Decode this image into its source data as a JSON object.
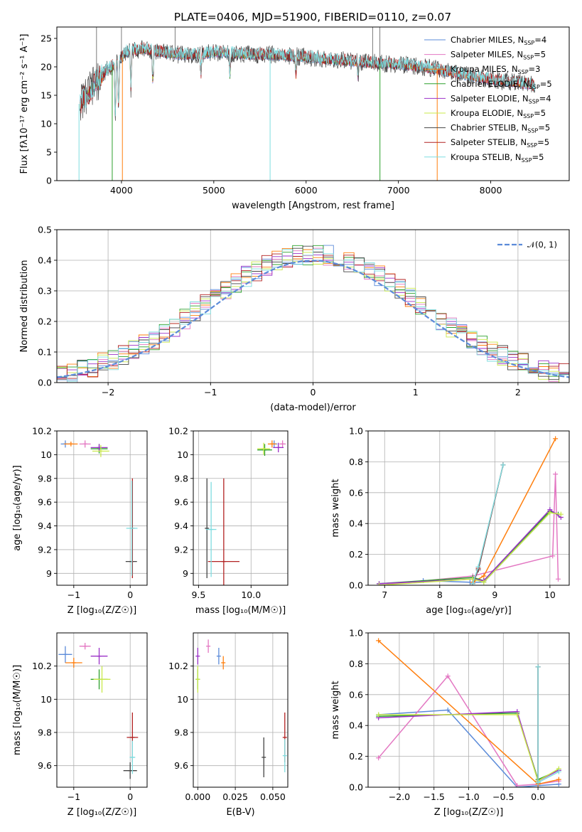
{
  "figure": {
    "title": "PLATE=0406, MJD=51900, FIBERID=0110, z=0.07"
  },
  "colors": {
    "Chabrier MILES": "#5b8bd9",
    "Salpeter MILES": "#e377c2",
    "Kroupa MILES": "#ff7f0e",
    "Chabrier ELODIE": "#2ca02c",
    "Salpeter ELODIE": "#9b30c8",
    "Kroupa ELODIE": "#c8e84a",
    "Chabrier STELIB": "#444444",
    "Salpeter STELIB": "#b22222",
    "Kroupa STELIB": "#7fdde0",
    "normal": "#5b8bd9"
  },
  "chart_data": [
    {
      "id": "spectrum",
      "type": "line",
      "xlabel": "wavelength [Angstrom, rest frame]",
      "ylabel": "Flux [fλ10⁻¹⁷ erg cm⁻² s⁻¹ A⁻¹]",
      "xlim": [
        3300,
        8850
      ],
      "ylim": [
        0,
        27
      ],
      "xticks": [
        4000,
        5000,
        6000,
        7000,
        8000
      ],
      "yticks": [
        0,
        5,
        10,
        15,
        20,
        25
      ],
      "grid": false,
      "legend_position": "top-right",
      "legend": [
        {
          "label": "Chabrier MILES, N",
          "sub": "SSP",
          "tail": "=4"
        },
        {
          "label": "Salpeter MILES, N",
          "sub": "SSP",
          "tail": "=5"
        },
        {
          "label": "Kroupa MILES, N",
          "sub": "SSP",
          "tail": "=3"
        },
        {
          "label": "Chabrier ELODIE, N",
          "sub": "SSP",
          "tail": "=5"
        },
        {
          "label": "Salpeter ELODIE, N",
          "sub": "SSP",
          "tail": "=4"
        },
        {
          "label": "Kroupa ELODIE, N",
          "sub": "SSP",
          "tail": "=5"
        },
        {
          "label": "Chabrier STELIB, N",
          "sub": "SSP",
          "tail": "=5"
        },
        {
          "label": "Salpeter STELIB, N",
          "sub": "SSP",
          "tail": "=5"
        },
        {
          "label": "Kroupa STELIB, N",
          "sub": "SSP",
          "tail": "=5"
        }
      ],
      "continuum": {
        "x": [
          3550,
          3650,
          3750,
          3850,
          3950,
          4050,
          4150,
          4250,
          4400,
          4600,
          4800,
          5000,
          5200,
          5400,
          5600,
          5800,
          6000,
          6200,
          6400,
          6600,
          6800,
          7000,
          7200,
          7400,
          7600,
          7800,
          8000,
          8200,
          8400,
          8500
        ],
        "y": [
          13.5,
          15.5,
          17.5,
          19.5,
          20.5,
          22.5,
          22.8,
          23.0,
          22.5,
          22.0,
          22.0,
          22.4,
          22.2,
          22.0,
          22.0,
          21.8,
          21.6,
          21.2,
          21.0,
          20.7,
          20.5,
          20.3,
          20.0,
          19.5,
          18.8,
          18.2,
          17.6,
          17.2,
          16.8,
          16.5
        ]
      },
      "absorption_lines": [
        {
          "x": 3933,
          "y": 11.0
        },
        {
          "x": 3968,
          "y": 12.0
        },
        {
          "x": 4102,
          "y": 16.0
        },
        {
          "x": 4340,
          "y": 16.5
        },
        {
          "x": 4861,
          "y": 18.5
        },
        {
          "x": 5175,
          "y": 18.0
        },
        {
          "x": 5890,
          "y": 18.5
        },
        {
          "x": 6563,
          "y": 18.0
        }
      ],
      "spikes_down": [
        {
          "x": 3900,
          "y": 0,
          "series": "Chabrier ELODIE"
        },
        {
          "x": 4010,
          "y": 0,
          "series": "Kroupa MILES"
        },
        {
          "x": 5610,
          "y": 0,
          "series": "Kroupa STELIB"
        },
        {
          "x": 6800,
          "y": 0,
          "series": "Chabrier ELODIE"
        },
        {
          "x": 7420,
          "y": 0,
          "series": "Kroupa MILES"
        },
        {
          "x": 3540,
          "y": 0,
          "series": "Kroupa STELIB"
        }
      ]
    },
    {
      "id": "residuals",
      "type": "step",
      "xlabel": "(data-model)/error",
      "ylabel": "Normed distribution",
      "xlim": [
        -2.5,
        2.5
      ],
      "ylim": [
        0,
        0.5
      ],
      "xticks": [
        -2,
        -1,
        0,
        1,
        2
      ],
      "xticklabels": [
        "−2",
        "−1",
        "0",
        "1",
        "2"
      ],
      "yticks": [
        0.0,
        0.1,
        0.2,
        0.3,
        0.4,
        0.5
      ],
      "yticklabels": [
        "0.0",
        "0.1",
        "0.2",
        "0.3",
        "0.4",
        "0.5"
      ],
      "grid": true,
      "legend_position": "top-right",
      "legend": "𝒩(0, 1)",
      "bin_width": 0.1,
      "bin_start": -2.5
    },
    {
      "id": "age-vs-Z",
      "type": "scatter-errorbar",
      "xlabel": "Z [log₁₀(Z/Z☉)]",
      "ylabel": "age  [log₁₀(age/yr)]",
      "xlim": [
        -1.3,
        0.3
      ],
      "ylim": [
        8.9,
        10.2
      ],
      "xticks": [
        -1,
        0
      ],
      "xticklabels": [
        "−1",
        "0"
      ],
      "yticks": [
        9.0,
        9.2,
        9.4,
        9.6,
        9.8,
        10.0,
        10.2
      ],
      "grid": true,
      "points": [
        {
          "series": "Chabrier MILES",
          "x": -1.15,
          "y": 10.09,
          "xerr": 0.08,
          "yerr": 0.03
        },
        {
          "series": "Salpeter MILES",
          "x": -0.8,
          "y": 10.09,
          "xerr": 0.1,
          "yerr": 0.03
        },
        {
          "series": "Kroupa MILES",
          "x": -1.05,
          "y": 10.09,
          "xerr": 0.12,
          "yerr": 0.02
        },
        {
          "series": "Chabrier ELODIE",
          "x": -0.55,
          "y": 10.05,
          "xerr": 0.15,
          "yerr": 0.04
        },
        {
          "series": "Salpeter ELODIE",
          "x": -0.55,
          "y": 10.06,
          "xerr": 0.15,
          "yerr": 0.03
        },
        {
          "series": "Kroupa ELODIE",
          "x": -0.52,
          "y": 10.03,
          "xerr": 0.15,
          "yerr": 0.05
        },
        {
          "series": "Chabrier STELIB",
          "x": 0.02,
          "y": 9.1,
          "xerr": 0.1,
          "yerr": 0.0
        },
        {
          "series": "Salpeter STELIB",
          "x": 0.04,
          "y": 9.38,
          "xerr": 0.0,
          "yerr": 0.42
        },
        {
          "series": "Kroupa STELIB",
          "x": 0.03,
          "y": 9.38,
          "xerr": 0.1,
          "yerr": 0.4
        }
      ]
    },
    {
      "id": "age-vs-mass",
      "type": "scatter-errorbar",
      "xlabel": "mass [log₁₀(M/M☉)]",
      "ylabel": "",
      "xlim": [
        9.45,
        10.35
      ],
      "ylim": [
        8.9,
        10.2
      ],
      "xticks": [
        9.5,
        10.0
      ],
      "xticklabels": [
        "9.5",
        "10.0"
      ],
      "yticks": [
        9.0,
        9.2,
        9.4,
        9.6,
        9.8,
        10.0,
        10.2
      ],
      "grid": true,
      "points": [
        {
          "series": "Chabrier MILES",
          "x": 10.22,
          "y": 10.09,
          "xerr": 0.03,
          "yerr": 0.03
        },
        {
          "series": "Salpeter MILES",
          "x": 10.3,
          "y": 10.09,
          "xerr": 0.03,
          "yerr": 0.03
        },
        {
          "series": "Kroupa MILES",
          "x": 10.2,
          "y": 10.09,
          "xerr": 0.04,
          "yerr": 0.03
        },
        {
          "series": "Chabrier ELODIE",
          "x": 10.13,
          "y": 10.04,
          "xerr": 0.07,
          "yerr": 0.05
        },
        {
          "series": "Salpeter ELODIE",
          "x": 10.26,
          "y": 10.06,
          "xerr": 0.05,
          "yerr": 0.04
        },
        {
          "series": "Kroupa ELODIE",
          "x": 10.12,
          "y": 10.05,
          "xerr": 0.06,
          "yerr": 0.05
        },
        {
          "series": "Chabrier STELIB",
          "x": 9.58,
          "y": 9.38,
          "xerr": 0.0,
          "yerr": 0.42
        },
        {
          "series": "Salpeter STELIB",
          "x": 9.74,
          "y": 9.1,
          "xerr": 0.15,
          "yerr": 0.7
        },
        {
          "series": "Kroupa STELIB",
          "x": 9.62,
          "y": 9.37,
          "xerr": 0.05,
          "yerr": 0.4
        }
      ]
    },
    {
      "id": "weight-vs-age",
      "type": "line",
      "xlabel": "age  [log₁₀(age/yr)]",
      "ylabel": "mass weight",
      "xlim": [
        6.7,
        10.35
      ],
      "ylim": [
        0,
        1
      ],
      "xticks": [
        7,
        8,
        9,
        10
      ],
      "yticks": [
        0.0,
        0.2,
        0.4,
        0.6,
        0.8,
        1.0
      ],
      "yticklabels": [
        "0.0",
        "0.2",
        "0.4",
        "0.6",
        "0.8",
        "1.0"
      ],
      "grid": true,
      "series": [
        {
          "name": "Chabrier MILES",
          "x": [
            7.7,
            8.55,
            8.8,
            10.0
          ],
          "y": [
            0.03,
            0.02,
            0.02,
            0.47
          ]
        },
        {
          "name": "Salpeter MILES",
          "x": [
            6.9,
            8.6,
            10.05,
            10.1,
            10.15
          ],
          "y": [
            0.0,
            0.06,
            0.19,
            0.72,
            0.04
          ]
        },
        {
          "name": "Kroupa MILES",
          "x": [
            8.6,
            8.8,
            10.1
          ],
          "y": [
            0.02,
            0.06,
            0.95
          ]
        },
        {
          "name": "Chabrier ELODIE",
          "x": [
            6.9,
            8.6,
            8.8,
            10.0,
            10.15
          ],
          "y": [
            0.01,
            0.05,
            0.03,
            0.48,
            0.46
          ]
        },
        {
          "name": "Salpeter ELODIE",
          "x": [
            6.9,
            8.6,
            8.8,
            10.0,
            10.2
          ],
          "y": [
            0.01,
            0.04,
            0.03,
            0.49,
            0.44
          ]
        },
        {
          "name": "Kroupa ELODIE",
          "x": [
            6.9,
            8.6,
            8.8,
            10.0,
            10.2
          ],
          "y": [
            0.0,
            0.04,
            0.02,
            0.47,
            0.46
          ]
        },
        {
          "name": "Chabrier STELIB",
          "x": [
            8.6,
            8.7,
            9.15
          ],
          "y": [
            0.01,
            0.1,
            0.78
          ]
        },
        {
          "name": "Salpeter STELIB",
          "x": [
            8.6,
            8.7,
            9.15
          ],
          "y": [
            0.01,
            0.11,
            0.78
          ]
        },
        {
          "name": "Kroupa STELIB",
          "x": [
            8.6,
            8.7,
            9.15
          ],
          "y": [
            0.01,
            0.12,
            0.78
          ]
        }
      ]
    },
    {
      "id": "mass-vs-Z",
      "type": "scatter-errorbar",
      "xlabel": "Z [log₁₀(Z/Z☉)]",
      "ylabel": "mass [log₁₀(M/M☉)]",
      "xlim": [
        -1.3,
        0.3
      ],
      "ylim": [
        9.47,
        10.4
      ],
      "xticks": [
        -1,
        0
      ],
      "xticklabels": [
        "−1",
        "0"
      ],
      "yticks": [
        9.6,
        9.8,
        10.0,
        10.2
      ],
      "grid": true,
      "points": [
        {
          "series": "Chabrier MILES",
          "x": -1.15,
          "y": 10.27,
          "xerr": 0.12,
          "yerr": 0.05
        },
        {
          "series": "Salpeter MILES",
          "x": -0.8,
          "y": 10.32,
          "xerr": 0.1,
          "yerr": 0.02
        },
        {
          "series": "Kroupa MILES",
          "x": -1.0,
          "y": 10.22,
          "xerr": 0.15,
          "yerr": 0.03
        },
        {
          "series": "Chabrier ELODIE",
          "x": -0.55,
          "y": 10.12,
          "xerr": 0.15,
          "yerr": 0.06
        },
        {
          "series": "Salpeter ELODIE",
          "x": -0.55,
          "y": 10.26,
          "xerr": 0.15,
          "yerr": 0.05
        },
        {
          "series": "Kroupa ELODIE",
          "x": -0.5,
          "y": 10.12,
          "xerr": 0.15,
          "yerr": 0.08
        },
        {
          "series": "Chabrier STELIB",
          "x": 0.0,
          "y": 9.57,
          "xerr": 0.12,
          "yerr": 0.05
        },
        {
          "series": "Salpeter STELIB",
          "x": 0.04,
          "y": 9.77,
          "xerr": 0.1,
          "yerr": 0.15
        },
        {
          "series": "Kroupa STELIB",
          "x": 0.04,
          "y": 9.65,
          "xerr": 0.05,
          "yerr": 0.1
        }
      ]
    },
    {
      "id": "mass-vs-EBV",
      "type": "scatter-errorbar",
      "xlabel": "E(B-V)",
      "ylabel": "",
      "xlim": [
        -0.003,
        0.06
      ],
      "ylim": [
        9.47,
        10.4
      ],
      "xticks": [
        0.0,
        0.025,
        0.05
      ],
      "xticklabels": [
        "0.000",
        "0.025",
        "0.050"
      ],
      "yticks": [
        9.6,
        9.8,
        10.0,
        10.2
      ],
      "grid": true,
      "points": [
        {
          "series": "Chabrier MILES",
          "x": 0.014,
          "y": 10.26,
          "xerr": 0.0,
          "yerr": 0.05
        },
        {
          "series": "Salpeter MILES",
          "x": 0.007,
          "y": 10.32,
          "xerr": 0.0,
          "yerr": 0.04
        },
        {
          "series": "Kroupa MILES",
          "x": 0.017,
          "y": 10.22,
          "xerr": 0.0,
          "yerr": 0.04
        },
        {
          "series": "Chabrier ELODIE",
          "x": 0.0,
          "y": 10.12,
          "xerr": 0.0,
          "yerr": 0.06
        },
        {
          "series": "Salpeter ELODIE",
          "x": 0.0,
          "y": 10.26,
          "xerr": 0.0,
          "yerr": 0.05
        },
        {
          "series": "Kroupa ELODIE",
          "x": 0.0,
          "y": 10.12,
          "xerr": 0.0,
          "yerr": 0.08
        },
        {
          "series": "Chabrier STELIB",
          "x": 0.044,
          "y": 9.65,
          "xerr": 0.0,
          "yerr": 0.12
        },
        {
          "series": "Salpeter STELIB",
          "x": 0.058,
          "y": 9.77,
          "xerr": 0.0,
          "yerr": 0.15
        },
        {
          "series": "Kroupa STELIB",
          "x": 0.058,
          "y": 9.66,
          "xerr": 0.0,
          "yerr": 0.1
        }
      ]
    },
    {
      "id": "weight-vs-Z",
      "type": "line",
      "xlabel": "Z [log₁₀(Z/Z☉)]",
      "ylabel": "mass weight",
      "xlim": [
        -2.45,
        0.45
      ],
      "ylim": [
        0,
        1
      ],
      "xticks": [
        -2.0,
        -1.5,
        -1.0,
        -0.5,
        0.0
      ],
      "xticklabels": [
        "−2.0",
        "−1.5",
        "−1.0",
        "−0.5",
        "0.0"
      ],
      "yticks": [
        0.0,
        0.2,
        0.4,
        0.6,
        0.8,
        1.0
      ],
      "yticklabels": [
        "0.0",
        "0.2",
        "0.4",
        "0.6",
        "0.8",
        "1.0"
      ],
      "grid": true,
      "series": [
        {
          "name": "Chabrier MILES",
          "x": [
            -2.3,
            -1.3,
            -0.3,
            0.0,
            0.3
          ],
          "y": [
            0.47,
            0.5,
            0.0,
            0.01,
            0.02
          ]
        },
        {
          "name": "Salpeter MILES",
          "x": [
            -2.3,
            -1.3,
            -0.3,
            0.0,
            0.3
          ],
          "y": [
            0.19,
            0.72,
            0.01,
            0.02,
            0.04
          ]
        },
        {
          "name": "Kroupa MILES",
          "x": [
            -2.3,
            0.0,
            0.3
          ],
          "y": [
            0.95,
            0.02,
            0.05
          ]
        },
        {
          "name": "Chabrier ELODIE",
          "x": [
            -2.3,
            -0.3,
            0.0,
            0.3
          ],
          "y": [
            0.46,
            0.48,
            0.05,
            0.11
          ]
        },
        {
          "name": "Salpeter ELODIE",
          "x": [
            -2.3,
            -0.3,
            0.0,
            0.3
          ],
          "y": [
            0.45,
            0.49,
            0.04,
            0.11
          ]
        },
        {
          "name": "Kroupa ELODIE",
          "x": [
            -2.3,
            -0.3,
            0.0,
            0.3
          ],
          "y": [
            0.47,
            0.47,
            0.04,
            0.12
          ]
        },
        {
          "name": "Chabrier STELIB",
          "x": [
            0.0,
            0.0
          ],
          "y": [
            0.78,
            0.03
          ]
        },
        {
          "name": "Salpeter STELIB",
          "x": [
            0.0,
            0.0
          ],
          "y": [
            0.78,
            0.03
          ]
        },
        {
          "name": "Kroupa STELIB",
          "x": [
            0.0,
            0.0,
            0.3
          ],
          "y": [
            0.78,
            0.03,
            0.1
          ]
        }
      ]
    }
  ]
}
